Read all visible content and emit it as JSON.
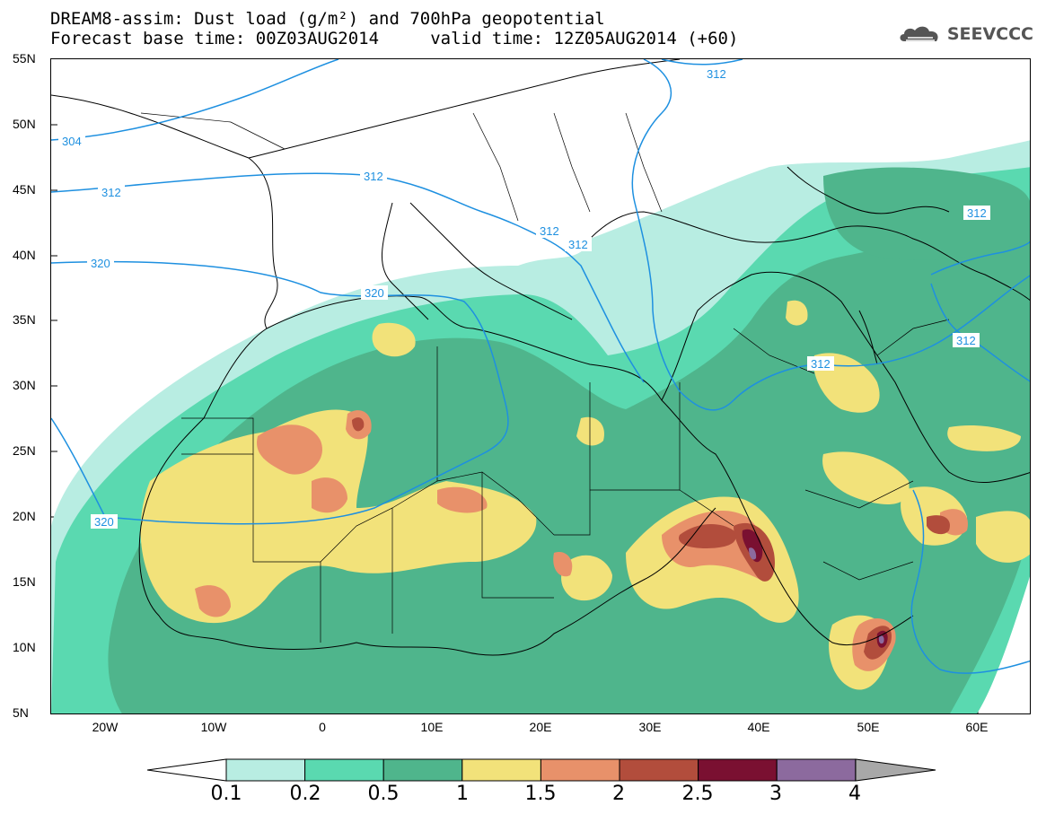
{
  "title_line1": "DREAM8-assim: Dust load (g/m²) and 700hPa geopotential",
  "title_line2": "Forecast base time: 00Z03AUG2014     valid time: 12Z05AUG2014 (+60)",
  "logo_text": "SEEVCCC",
  "lat_labels": [
    "55N",
    "50N",
    "45N",
    "40N",
    "35N",
    "30N",
    "25N",
    "20N",
    "15N",
    "10N",
    "5N"
  ],
  "lon_labels": [
    "20W",
    "10W",
    "0",
    "10E",
    "20E",
    "30E",
    "40E",
    "50E",
    "60E"
  ],
  "colorbar": {
    "labels": [
      "0.1",
      "0.2",
      "0.5",
      "1",
      "1.5",
      "2",
      "2.5",
      "3",
      "4"
    ],
    "colors": [
      "#b8ede2",
      "#5ad9b0",
      "#4fb58c",
      "#f2e27a",
      "#e8916a",
      "#b24d3c",
      "#7a1031",
      "#8c6a9e",
      "#a8a8a8"
    ]
  },
  "contour_labels": [
    "304",
    "312",
    "312",
    "312",
    "320",
    "320",
    "320",
    "312",
    "312",
    "312",
    "312",
    "312"
  ],
  "contour_color": "#1e90e0"
}
